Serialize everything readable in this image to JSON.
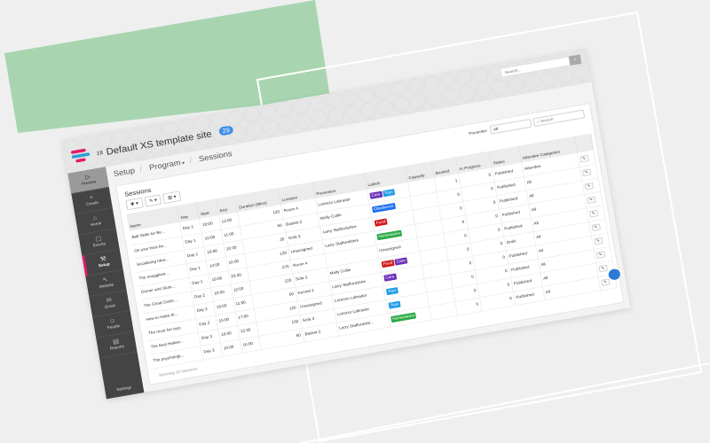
{
  "colors": {
    "accent": "#e6196b",
    "badge": "#3d8ee8",
    "green_bg": "#a8d5b0",
    "sidebar": "#444444"
  },
  "header": {
    "site_number": "18",
    "site_title": "Default XS template site",
    "badge_count": "29",
    "search_placeholder": "Search...",
    "search_icon": "search-icon"
  },
  "sidebar": {
    "items": [
      {
        "label": "Preview",
        "icon": "play-icon"
      },
      {
        "label": "Create",
        "icon": "plus-icon"
      },
      {
        "label": "Home",
        "icon": "home-icon"
      },
      {
        "label": "Events",
        "icon": "calendar-icon"
      },
      {
        "label": "Setup",
        "icon": "tools-icon"
      },
      {
        "label": "Website",
        "icon": "cursor-icon"
      },
      {
        "label": "Email",
        "icon": "envelope-icon"
      },
      {
        "label": "People",
        "icon": "people-icon"
      },
      {
        "label": "Reports",
        "icon": "document-icon"
      }
    ],
    "settings": "Settings"
  },
  "breadcrumb": {
    "setup": "Setup",
    "program": "Program",
    "sessions": "Sessions"
  },
  "card": {
    "title": "Sessions",
    "presenter_label": "Presenter:",
    "presenter_value": "All",
    "search_placeholder": "Search",
    "footer": "Showing 10 sessions"
  },
  "table": {
    "columns": [
      "Name",
      "Day",
      "Start",
      "End",
      "Duration (Mins)",
      "Location",
      "Presenters",
      "Labels",
      "Capacity",
      "Booked",
      "In Progress",
      "Status",
      "Attendee Categories"
    ],
    "rows": [
      {
        "name": "Ball Skills for Be...",
        "day": "Day 1",
        "start": "10:00",
        "end": "12:00",
        "duration": "120",
        "location": "Room 4",
        "presenter": "Lorenzo Labrador",
        "labels": [
          "Care",
          "Toys"
        ],
        "capacity": "",
        "booked": "1",
        "in_progress": "0",
        "status": "Published",
        "categories": "Attendee"
      },
      {
        "name": "On your best be...",
        "day": "Day 1",
        "start": "10:00",
        "end": "11:00",
        "duration": "60",
        "location": "Basket 2",
        "presenter": "Molly Collie",
        "labels": [
          "Obedience"
        ],
        "capacity": "",
        "booked": "0",
        "in_progress": "0",
        "status": "Published",
        "categories": "All"
      },
      {
        "name": "Socialising Idea...",
        "day": "Day 1",
        "start": "10:00",
        "end": "10:30",
        "duration": "30",
        "location": "Sofa 3",
        "presenter": "Larry Staffordshire",
        "labels": [
          "Food"
        ],
        "capacity": "",
        "booked": "0",
        "in_progress": "0",
        "status": "Published",
        "categories": "All"
      },
      {
        "name": "The snuggliest ...",
        "day": "Day 1",
        "start": "14:00",
        "end": "16:00",
        "duration": "120",
        "location": "Unassigned",
        "presenter": "Larry Staffordshire",
        "labels": [
          "Homewares"
        ],
        "capacity": "",
        "booked": "0",
        "in_progress": "0",
        "status": "Published",
        "categories": "All"
      },
      {
        "name": "Dinner and Slum...",
        "day": "Day 1",
        "start": "19:00",
        "end": "23:30",
        "duration": "270",
        "location": "Room 4",
        "presenter": "",
        "labels": [],
        "labels_text": "Unassigned",
        "capacity": "",
        "booked": "0",
        "in_progress": "0",
        "status": "Published",
        "categories": "All"
      },
      {
        "name": "The Great Canin...",
        "day": "Day 2",
        "start": "10:00",
        "end": "12:00",
        "duration": "120",
        "location": "Sofa 3",
        "presenter": "Molly Collie",
        "labels": [
          "Food",
          "Care"
        ],
        "capacity": "",
        "booked": "0",
        "in_progress": "0",
        "status": "Draft",
        "categories": "All"
      },
      {
        "name": "How to make th...",
        "day": "Day 2",
        "start": "10:00",
        "end": "11:00",
        "duration": "60",
        "location": "Kennel 1",
        "presenter": "Larry Staffordshire",
        "labels": [
          "Care"
        ],
        "capacity": "",
        "booked": "0",
        "in_progress": "0",
        "status": "Published",
        "categories": "All"
      },
      {
        "name": "The most fun toys",
        "day": "Day 2",
        "start": "15:00",
        "end": "17:00",
        "duration": "120",
        "location": "Unassigned",
        "presenter": "Lorenzo Labrador",
        "labels": [
          "Toys"
        ],
        "capacity": "",
        "booked": "0",
        "in_progress": "0",
        "status": "Published",
        "categories": "All"
      },
      {
        "name": "The best Hallow...",
        "day": "Day 3",
        "start": "10:00",
        "end": "12:30",
        "duration": "150",
        "location": "Sofa 3",
        "presenter": "Lorenzo Labrador",
        "labels": [
          "Toys"
        ],
        "capacity": "",
        "booked": "0",
        "in_progress": "0",
        "status": "Published",
        "categories": "All"
      },
      {
        "name": "The psychologi...",
        "day": "Day 3",
        "start": "15:00",
        "end": "16:00",
        "duration": "60",
        "location": "Basket 2",
        "presenter": "Larry Staffordshir...",
        "labels": [
          "Homewares"
        ],
        "capacity": "",
        "booked": "0",
        "in_progress": "0",
        "status": "Published",
        "categories": "All"
      }
    ],
    "label_colors": {
      "Care": "#6b2fb8",
      "Toys": "#1e9be8",
      "Obedience": "#1b6ff0",
      "Food": "#d11a1a",
      "Homewares": "#2aa845"
    }
  }
}
